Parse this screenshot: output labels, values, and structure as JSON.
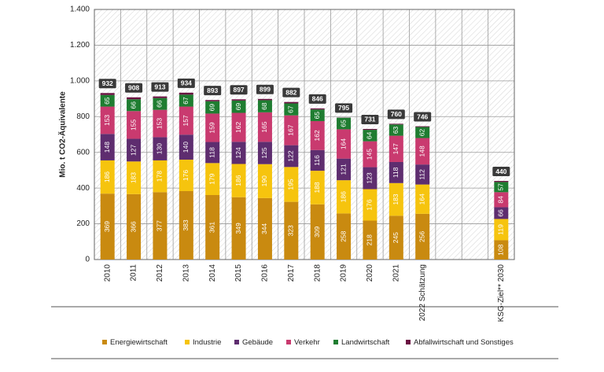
{
  "chart_data": {
    "type": "stacked_bar",
    "ylabel": "Mio. t CO2-Äquivalente",
    "categories": [
      "2010",
      "2011",
      "2012",
      "2013",
      "2014",
      "2015",
      "2016",
      "2017",
      "2018",
      "2019",
      "2020",
      "2021",
      "2022 Schätzung",
      null,
      null,
      "KSG-Ziel** 2030"
    ],
    "series": [
      {
        "name": "Energiewirtschaft",
        "color": "#c98a10",
        "values": [
          369,
          366,
          377,
          383,
          361,
          349,
          344,
          323,
          309,
          258,
          218,
          245,
          256,
          null,
          null,
          108
        ]
      },
      {
        "name": "Industrie",
        "color": "#f6c40e",
        "values": [
          186,
          183,
          178,
          176,
          179,
          186,
          190,
          195,
          188,
          186,
          176,
          183,
          164,
          null,
          null,
          119
        ]
      },
      {
        "name": "Gebäude",
        "color": "#5e2d6f",
        "values": [
          148,
          127,
          130,
          140,
          118,
          124,
          125,
          122,
          116,
          121,
          123,
          118,
          112,
          null,
          null,
          66
        ]
      },
      {
        "name": "Verkehr",
        "color": "#c93a6f",
        "values": [
          153,
          155,
          153,
          157,
          159,
          162,
          165,
          167,
          162,
          164,
          145,
          147,
          148,
          null,
          null,
          84
        ]
      },
      {
        "name": "Landwirtschaft",
        "color": "#1f7d31",
        "values": [
          65,
          66,
          66,
          67,
          69,
          69,
          68,
          67,
          65,
          65,
          64,
          63,
          62,
          null,
          null,
          57
        ]
      },
      {
        "name": "Abfallwirtschaft und Sonstiges",
        "color": "#6a1141",
        "values": [
          11,
          11,
          9,
          11,
          7,
          7,
          7,
          8,
          6,
          1,
          5,
          4,
          4,
          null,
          null,
          6
        ]
      }
    ],
    "totals": [
      932,
      908,
      913,
      934,
      893,
      897,
      899,
      882,
      846,
      795,
      731,
      760,
      746,
      null,
      null,
      440
    ],
    "ylim": [
      0,
      1400
    ],
    "yticks": [
      0,
      200,
      400,
      600,
      800,
      {
        "value": 1000,
        "label": "1.000"
      },
      {
        "value": 1200,
        "label": "1.200"
      },
      {
        "value": 1400,
        "label": "1.400"
      }
    ],
    "grid": true
  }
}
